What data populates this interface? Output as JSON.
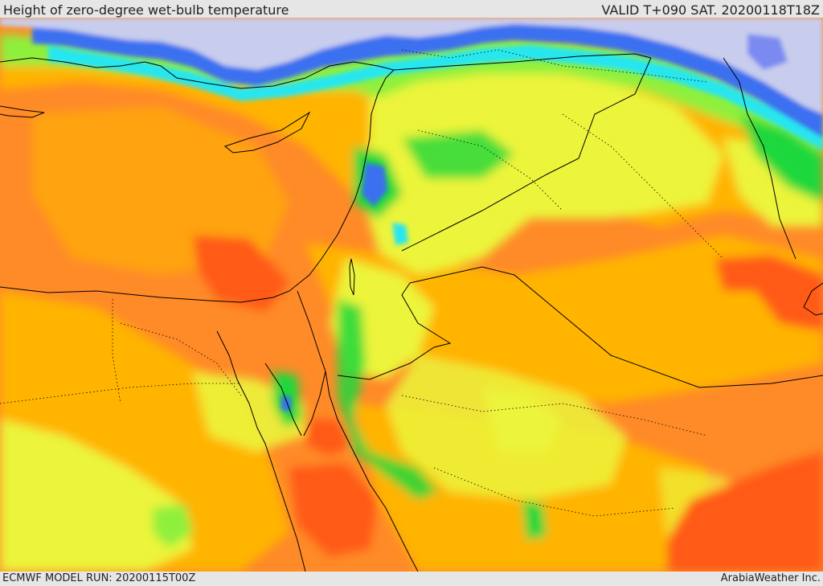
{
  "header": {
    "title": "Height of zero-degree wet-bulb temperature",
    "valid_time": "VALID T+090 SAT. 20200118T18Z"
  },
  "footer": {
    "model_run": "ECMWF MODEL RUN: 20200115T00Z",
    "credit": "ArabiaWeather Inc."
  },
  "map": {
    "palette": {
      "lowest": "#c8cdee",
      "blue": "#3a6ff0",
      "cyan": "#28e6f0",
      "green": "#1ed83c",
      "light_green": "#8ef03c",
      "yellow": "#ecf43a",
      "amber": "#ffb400",
      "orange": "#ff8a28",
      "red_orange": "#ff5a14"
    },
    "boundary_color": "#000000"
  }
}
